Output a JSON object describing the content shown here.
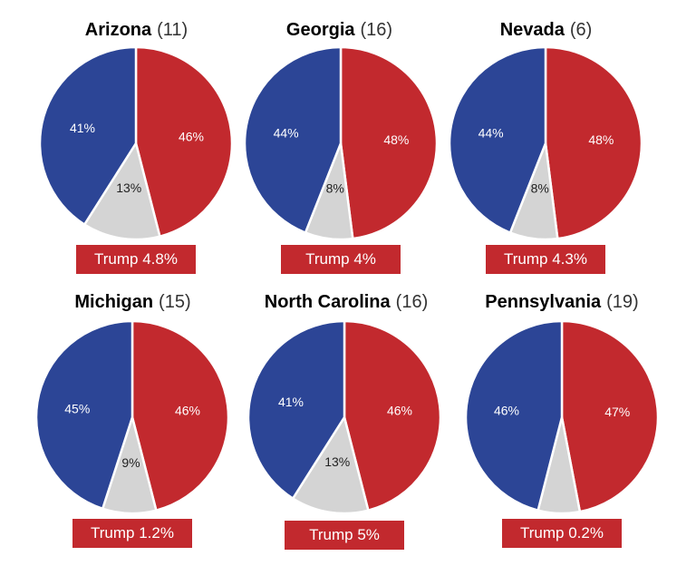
{
  "colors": {
    "dem": "#2c4596",
    "rep": "#c2292e",
    "other": "#d4d4d4"
  },
  "chart_data": [
    {
      "type": "pie",
      "state": "Arizona",
      "ev": "(11)",
      "slices": [
        {
          "key": "rep",
          "value": 46,
          "label": "46%"
        },
        {
          "key": "other",
          "value": 13,
          "label": "13%"
        },
        {
          "key": "dem",
          "value": 41,
          "label": "41%"
        }
      ],
      "lead": "Trump 4.8%"
    },
    {
      "type": "pie",
      "state": "Georgia",
      "ev": "(16)",
      "slices": [
        {
          "key": "rep",
          "value": 48,
          "label": "48%"
        },
        {
          "key": "other",
          "value": 8,
          "label": "8%"
        },
        {
          "key": "dem",
          "value": 44,
          "label": "44%"
        }
      ],
      "lead": "Trump 4%"
    },
    {
      "type": "pie",
      "state": "Nevada",
      "ev": "(6)",
      "slices": [
        {
          "key": "rep",
          "value": 48,
          "label": "48%"
        },
        {
          "key": "other",
          "value": 8,
          "label": "8%"
        },
        {
          "key": "dem",
          "value": 44,
          "label": "44%"
        }
      ],
      "lead": "Trump 4.3%"
    },
    {
      "type": "pie",
      "state": "Michigan",
      "ev": "(15)",
      "slices": [
        {
          "key": "rep",
          "value": 46,
          "label": "46%"
        },
        {
          "key": "other",
          "value": 9,
          "label": "9%"
        },
        {
          "key": "dem",
          "value": 45,
          "label": "45%"
        }
      ],
      "lead": "Trump 1.2%"
    },
    {
      "type": "pie",
      "state": "North Carolina",
      "ev": "(16)",
      "slices": [
        {
          "key": "rep",
          "value": 46,
          "label": "46%"
        },
        {
          "key": "other",
          "value": 13,
          "label": "13%"
        },
        {
          "key": "dem",
          "value": 41,
          "label": "41%"
        }
      ],
      "lead": "Trump 5%"
    },
    {
      "type": "pie",
      "state": "Pennsylvania",
      "ev": "(19)",
      "slices": [
        {
          "key": "rep",
          "value": 47,
          "label": "47%"
        },
        {
          "key": "other",
          "value": 7,
          "label": ""
        },
        {
          "key": "dem",
          "value": 46,
          "label": "46%"
        }
      ],
      "lead": "Trump 0.2%"
    }
  ]
}
